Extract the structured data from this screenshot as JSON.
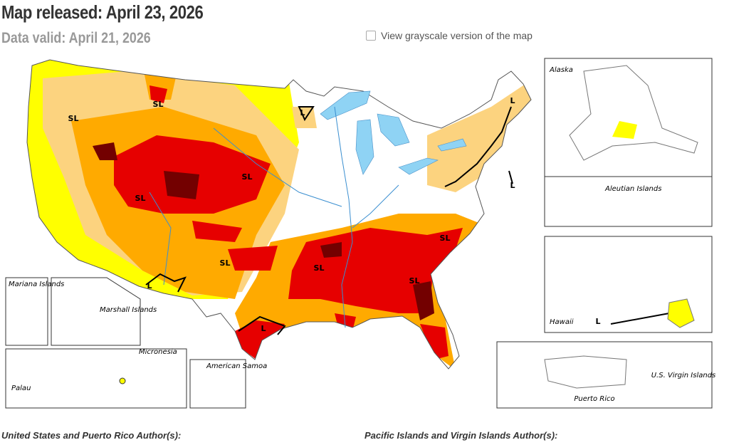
{
  "header": {
    "title": "Map released: April 23, 2026",
    "subtitle": "Data valid: April 21, 2026"
  },
  "checkbox": {
    "label": "View grayscale version of the map"
  },
  "map": {
    "impact_labels": [
      "SL",
      "SL",
      "SL",
      "SL",
      "SL",
      "SL",
      "SL",
      "SL",
      "L",
      "L",
      "L",
      "L",
      "L",
      "L"
    ],
    "insets": [
      "Alaska",
      "Aleutian Islands",
      "Hawaii",
      "Mariana Islands",
      "Marshall Islands",
      "Micronesia",
      "Palau",
      "American Samoa",
      "Puerto Rico",
      "U.S. Virgin Islands"
    ]
  },
  "footer": {
    "authors_us": "United States and Puerto Rico Author(s):",
    "authors_pacific": "Pacific Islands and Virgin Islands Author(s):"
  }
}
